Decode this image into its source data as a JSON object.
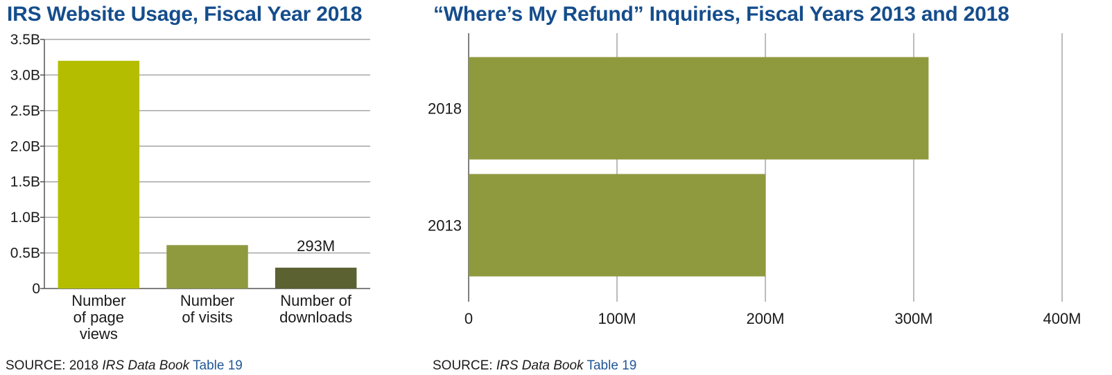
{
  "chart_data": [
    {
      "type": "bar",
      "title": "IRS Website Usage, Fiscal Year 2018",
      "orientation": "vertical",
      "categories": [
        [
          "Number",
          "of page",
          "views"
        ],
        [
          "Number",
          "of visits"
        ],
        [
          "Number of",
          "downloads"
        ]
      ],
      "values": [
        3200000000,
        610000000,
        293000000
      ],
      "data_labels": [
        "",
        "",
        "293M"
      ],
      "colors": [
        "#b5bd00",
        "#8f9a3e",
        "#5c6132"
      ],
      "ylim": [
        0,
        3500000000
      ],
      "yticks": [
        {
          "value": 0,
          "label": "0"
        },
        {
          "value": 500000000,
          "label": "0.5B"
        },
        {
          "value": 1000000000,
          "label": "1.0B"
        },
        {
          "value": 1500000000,
          "label": "1.5B"
        },
        {
          "value": 2000000000,
          "label": "2.0B"
        },
        {
          "value": 2500000000,
          "label": "2.5B"
        },
        {
          "value": 3000000000,
          "label": "3.0B"
        },
        {
          "value": 3500000000,
          "label": "3.5B"
        }
      ],
      "grid": true,
      "xlabel": "",
      "ylabel": "",
      "source": {
        "prefix": "SOURCE: 2018 ",
        "book": "IRS Data Book",
        "link": "Table 19"
      }
    },
    {
      "type": "bar",
      "title": "“Where’s My Refund” Inquiries, Fiscal Years 2013 and 2018",
      "orientation": "horizontal",
      "categories": [
        "2018",
        "2013"
      ],
      "values": [
        310000000,
        200000000
      ],
      "colors": [
        "#8f9a3e",
        "#8f9a3e"
      ],
      "xlim": [
        0,
        400000000
      ],
      "xticks": [
        {
          "value": 0,
          "label": "0"
        },
        {
          "value": 100000000,
          "label": "100M"
        },
        {
          "value": 200000000,
          "label": "200M"
        },
        {
          "value": 300000000,
          "label": "300M"
        },
        {
          "value": 400000000,
          "label": "400M"
        }
      ],
      "grid": true,
      "xlabel": "",
      "ylabel": "",
      "source": {
        "prefix": "SOURCE: ",
        "book": "IRS Data Book",
        "link": "Table 19"
      }
    }
  ],
  "style": {
    "title_color": "#154d8c",
    "grid_color": "#a6a6a6",
    "axis_color": "#555555",
    "link_color": "#1f5796"
  }
}
